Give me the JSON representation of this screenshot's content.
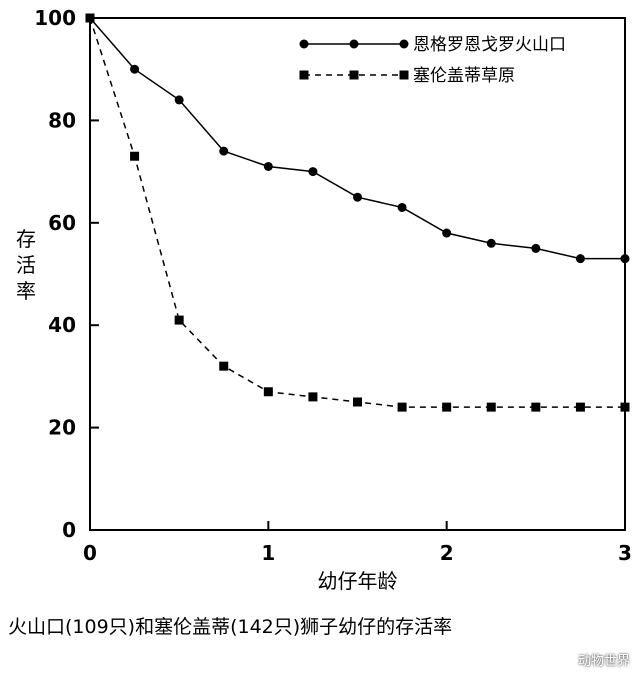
{
  "chart_data": {
    "type": "line",
    "ylabel": "存活率",
    "xlabel": "幼仔年龄",
    "x": [
      0,
      0.25,
      0.5,
      0.75,
      1,
      1.25,
      1.5,
      1.75,
      2,
      2.25,
      2.5,
      2.75,
      3
    ],
    "xlim": [
      0,
      3
    ],
    "ylim": [
      0,
      100
    ],
    "xticks": [
      0,
      1,
      2,
      3
    ],
    "yticks": [
      0,
      20,
      40,
      60,
      80,
      100
    ],
    "grid": false,
    "legend_position": "top-right",
    "series": [
      {
        "name": "恩格罗恩戈罗火山口",
        "line": "solid",
        "marker": "circle",
        "values": [
          100,
          90,
          84,
          74,
          71,
          70,
          65,
          63,
          58,
          56,
          55,
          53,
          53
        ]
      },
      {
        "name": "塞伦盖蒂草原",
        "line": "dashed",
        "marker": "square",
        "values": [
          100,
          73,
          41,
          32,
          27,
          26,
          25,
          24,
          24,
          24,
          24,
          24,
          24
        ]
      }
    ]
  },
  "caption": "火山口(109只)和塞伦盖蒂(142只)狮子幼仔的存活率",
  "watermark": "动物世界"
}
